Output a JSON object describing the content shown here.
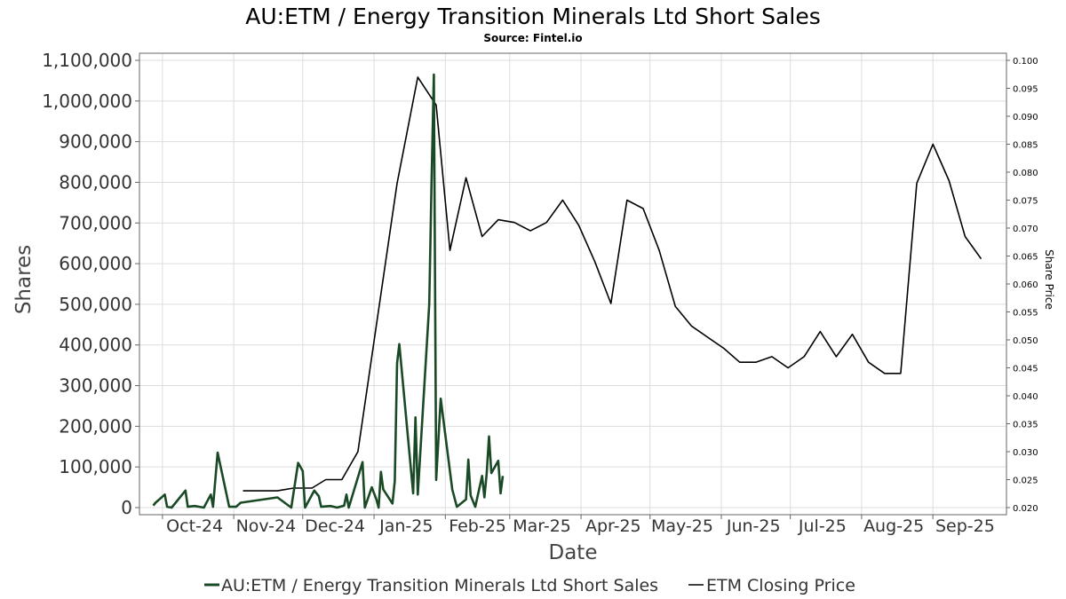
{
  "title": "AU:ETM / Energy Transition Minerals Ltd Short Sales",
  "subtitle": "Source: Fintel.io",
  "chart_data": {
    "type": "line",
    "title": "AU:ETM / Energy Transition Minerals Ltd Short Sales",
    "subtitle": "Source: Fintel.io",
    "xlabel": "Date",
    "ylabel": "Shares",
    "y2label": "Share Price",
    "xlim": [
      "2024-09-21",
      "2025-10-03"
    ],
    "ylim": [
      0,
      1100000
    ],
    "y2lim": [
      0.02,
      0.1
    ],
    "grid": true,
    "legend_position": "bottom",
    "x_ticks": [
      {
        "date": "2024-10-01",
        "label": "Oct-24"
      },
      {
        "date": "2024-11-01",
        "label": "Nov-24"
      },
      {
        "date": "2024-12-01",
        "label": "Dec-24"
      },
      {
        "date": "2025-01-01",
        "label": "Jan-25"
      },
      {
        "date": "2025-02-01",
        "label": "Feb-25"
      },
      {
        "date": "2025-03-01",
        "label": "Mar-25"
      },
      {
        "date": "2025-04-01",
        "label": "Apr-25"
      },
      {
        "date": "2025-05-01",
        "label": "May-25"
      },
      {
        "date": "2025-06-01",
        "label": "Jun-25"
      },
      {
        "date": "2025-07-01",
        "label": "Jul-25"
      },
      {
        "date": "2025-08-01",
        "label": "Aug-25"
      },
      {
        "date": "2025-09-01",
        "label": "Sep-25"
      }
    ],
    "y_ticks": [
      {
        "value": 0,
        "label": "0"
      },
      {
        "value": 100000,
        "label": "100,000"
      },
      {
        "value": 200000,
        "label": "200,000"
      },
      {
        "value": 300000,
        "label": "300,000"
      },
      {
        "value": 400000,
        "label": "400,000"
      },
      {
        "value": 500000,
        "label": "500,000"
      },
      {
        "value": 600000,
        "label": "600,000"
      },
      {
        "value": 700000,
        "label": "700,000"
      },
      {
        "value": 800000,
        "label": "800,000"
      },
      {
        "value": 900000,
        "label": "900,000"
      },
      {
        "value": 1000000,
        "label": "1,000,000"
      },
      {
        "value": 1100000,
        "label": "1,100,000"
      }
    ],
    "y2_ticks": [
      {
        "value": 0.02,
        "label": "0.020"
      },
      {
        "value": 0.025,
        "label": "0.025"
      },
      {
        "value": 0.03,
        "label": "0.030"
      },
      {
        "value": 0.035,
        "label": "0.035"
      },
      {
        "value": 0.04,
        "label": "0.040"
      },
      {
        "value": 0.045,
        "label": "0.045"
      },
      {
        "value": 0.05,
        "label": "0.050"
      },
      {
        "value": 0.055,
        "label": "0.055"
      },
      {
        "value": 0.06,
        "label": "0.060"
      },
      {
        "value": 0.065,
        "label": "0.065"
      },
      {
        "value": 0.07,
        "label": "0.070"
      },
      {
        "value": 0.075,
        "label": "0.075"
      },
      {
        "value": 0.08,
        "label": "0.080"
      },
      {
        "value": 0.085,
        "label": "0.085"
      },
      {
        "value": 0.09,
        "label": "0.090"
      },
      {
        "value": 0.095,
        "label": "0.095"
      },
      {
        "value": 0.1,
        "label": "0.100"
      }
    ],
    "series": [
      {
        "name": "AU:ETM / Energy Transition Minerals Ltd Short Sales",
        "axis": "left",
        "color": "#1a4a25",
        "points": [
          [
            "2024-09-27",
            5000
          ],
          [
            "2024-09-28",
            12000
          ],
          [
            "2024-10-02",
            32000
          ],
          [
            "2024-10-03",
            2000
          ],
          [
            "2024-10-05",
            0
          ],
          [
            "2024-10-11",
            42000
          ],
          [
            "2024-10-12",
            2000
          ],
          [
            "2024-10-15",
            4000
          ],
          [
            "2024-10-19",
            0
          ],
          [
            "2024-10-22",
            32000
          ],
          [
            "2024-10-23",
            2000
          ],
          [
            "2024-10-25",
            135000
          ],
          [
            "2024-10-30",
            2000
          ],
          [
            "2024-11-02",
            2000
          ],
          [
            "2024-11-04",
            12000
          ],
          [
            "2024-11-20",
            25000
          ],
          [
            "2024-11-26",
            0
          ],
          [
            "2024-11-29",
            110000
          ],
          [
            "2024-12-01",
            90000
          ],
          [
            "2024-12-02",
            0
          ],
          [
            "2024-12-06",
            42000
          ],
          [
            "2024-12-08",
            28000
          ],
          [
            "2024-12-09",
            2000
          ],
          [
            "2024-12-13",
            4000
          ],
          [
            "2024-12-16",
            0
          ],
          [
            "2024-12-19",
            5000
          ],
          [
            "2024-12-20",
            32000
          ],
          [
            "2024-12-21",
            0
          ],
          [
            "2024-12-27",
            112000
          ],
          [
            "2024-12-28",
            0
          ],
          [
            "2024-12-31",
            50000
          ],
          [
            "2025-01-02",
            20000
          ],
          [
            "2025-01-03",
            0
          ],
          [
            "2025-01-04",
            88000
          ],
          [
            "2025-01-05",
            45000
          ],
          [
            "2025-01-09",
            10000
          ],
          [
            "2025-01-10",
            65000
          ],
          [
            "2025-01-11",
            355000
          ],
          [
            "2025-01-12",
            402000
          ],
          [
            "2025-01-18",
            35000
          ],
          [
            "2025-01-19",
            222000
          ],
          [
            "2025-01-20",
            32000
          ],
          [
            "2025-01-25",
            500000
          ],
          [
            "2025-01-26",
            800000
          ],
          [
            "2025-01-27",
            1065000
          ],
          [
            "2025-01-28",
            68000
          ],
          [
            "2025-01-30",
            268000
          ],
          [
            "2025-02-04",
            45000
          ],
          [
            "2025-02-06",
            2000
          ],
          [
            "2025-02-10",
            20000
          ],
          [
            "2025-02-11",
            118000
          ],
          [
            "2025-02-12",
            30000
          ],
          [
            "2025-02-14",
            2000
          ],
          [
            "2025-02-17",
            78000
          ],
          [
            "2025-02-18",
            25000
          ],
          [
            "2025-02-19",
            85000
          ],
          [
            "2025-02-20",
            175000
          ],
          [
            "2025-02-21",
            85000
          ],
          [
            "2025-02-24",
            115000
          ],
          [
            "2025-02-25",
            35000
          ],
          [
            "2025-02-26",
            78000
          ]
        ]
      },
      {
        "name": "ETM Closing Price",
        "axis": "right",
        "color": "#000000",
        "points": [
          [
            "2024-11-05",
            0.023
          ],
          [
            "2024-11-20",
            0.023
          ],
          [
            "2024-11-27",
            0.0235
          ],
          [
            "2024-12-05",
            0.0235
          ],
          [
            "2024-12-11",
            0.025
          ],
          [
            "2024-12-18",
            0.025
          ],
          [
            "2024-12-25",
            0.03
          ],
          [
            "2025-01-11",
            0.078
          ],
          [
            "2025-01-20",
            0.097
          ],
          [
            "2025-01-28",
            0.092
          ],
          [
            "2025-02-03",
            0.066
          ],
          [
            "2025-02-10",
            0.079
          ],
          [
            "2025-02-17",
            0.0685
          ],
          [
            "2025-02-24",
            0.0715
          ],
          [
            "2025-03-03",
            0.071
          ],
          [
            "2025-03-10",
            0.0695
          ],
          [
            "2025-03-17",
            0.071
          ],
          [
            "2025-03-24",
            0.075
          ],
          [
            "2025-03-31",
            0.0705
          ],
          [
            "2025-04-07",
            0.064
          ],
          [
            "2025-04-14",
            0.0565
          ],
          [
            "2025-04-21",
            0.075
          ],
          [
            "2025-04-28",
            0.0735
          ],
          [
            "2025-05-05",
            0.066
          ],
          [
            "2025-05-12",
            0.056
          ],
          [
            "2025-05-19",
            0.0525
          ],
          [
            "2025-05-26",
            0.0505
          ],
          [
            "2025-06-02",
            0.0485
          ],
          [
            "2025-06-09",
            0.046
          ],
          [
            "2025-06-16",
            0.046
          ],
          [
            "2025-06-23",
            0.047
          ],
          [
            "2025-06-30",
            0.045
          ],
          [
            "2025-07-07",
            0.047
          ],
          [
            "2025-07-14",
            0.0515
          ],
          [
            "2025-07-21",
            0.047
          ],
          [
            "2025-07-28",
            0.051
          ],
          [
            "2025-08-04",
            0.046
          ],
          [
            "2025-08-11",
            0.044
          ],
          [
            "2025-08-18",
            0.044
          ],
          [
            "2025-08-25",
            0.078
          ],
          [
            "2025-09-01",
            0.085
          ],
          [
            "2025-09-08",
            0.0785
          ],
          [
            "2025-09-15",
            0.0685
          ],
          [
            "2025-09-22",
            0.0645
          ]
        ]
      }
    ]
  },
  "legend": {
    "items": [
      {
        "label": "AU:ETM / Energy Transition Minerals Ltd Short Sales",
        "color": "#1a4a25"
      },
      {
        "label": "ETM Closing Price",
        "color": "#000000"
      }
    ]
  }
}
